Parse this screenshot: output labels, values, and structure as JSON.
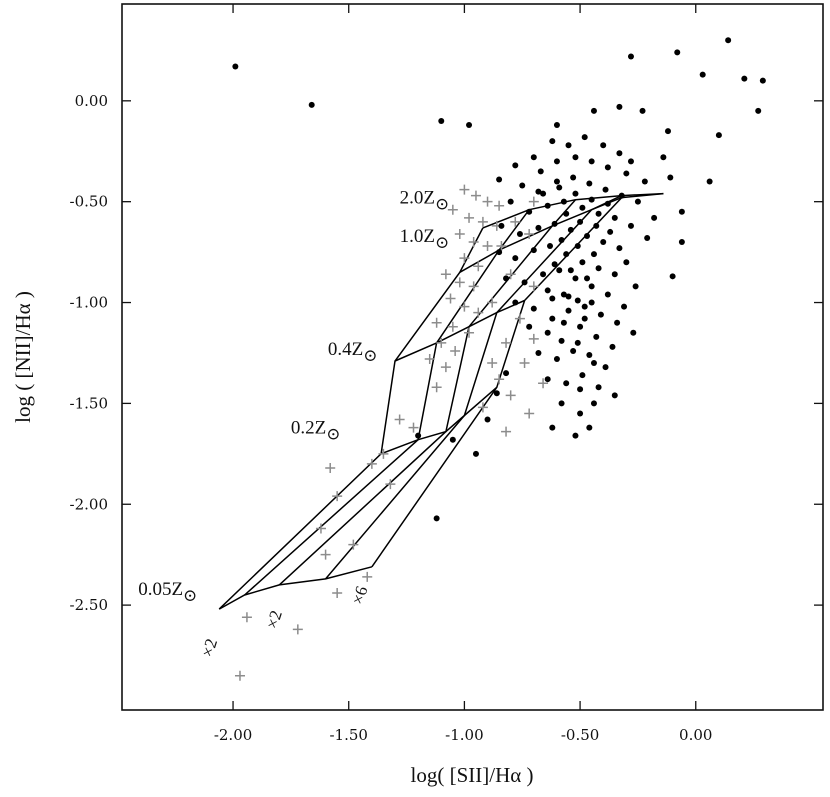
{
  "chart_data": {
    "type": "scatter",
    "title": "",
    "xlabel": "log( [SII]/Hα )",
    "ylabel": "log ( [NII]/Hα )",
    "xlim": [
      -2.48,
      0.55
    ],
    "ylim": [
      -3.02,
      0.48
    ],
    "xticks": [
      -2.0,
      -1.5,
      -1.0,
      -0.5,
      0.0
    ],
    "xtick_labels": [
      "-2.00",
      "-1.50",
      "-1.00",
      "-0.50",
      "0.00"
    ],
    "yticks": [
      0.0,
      -0.5,
      -1.0,
      -1.5,
      -2.0,
      -2.5
    ],
    "ytick_labels": [
      "0.00",
      "-0.50",
      "-1.00",
      "-1.50",
      "-2.00",
      "-2.50"
    ],
    "grid": false,
    "legend": "none",
    "series": [
      {
        "marker": "dot",
        "color": "#000000",
        "points": [
          [
            -1.99,
            0.17
          ],
          [
            -1.66,
            -0.02
          ],
          [
            -1.1,
            -0.1
          ],
          [
            -0.98,
            -0.12
          ],
          [
            -0.28,
            0.22
          ],
          [
            -0.08,
            0.24
          ],
          [
            0.03,
            0.13
          ],
          [
            0.14,
            0.3
          ],
          [
            0.21,
            0.11
          ],
          [
            0.29,
            0.1
          ],
          [
            0.27,
            -0.05
          ],
          [
            0.1,
            -0.17
          ],
          [
            -0.12,
            -0.15
          ],
          [
            -0.23,
            -0.05
          ],
          [
            -0.33,
            -0.03
          ],
          [
            -0.44,
            -0.05
          ],
          [
            -0.6,
            -0.12
          ],
          [
            -0.14,
            -0.28
          ],
          [
            -0.11,
            -0.38
          ],
          [
            -0.06,
            -0.55
          ],
          [
            -0.06,
            -0.7
          ],
          [
            0.06,
            -0.4
          ],
          [
            -0.1,
            -0.87
          ],
          [
            -0.85,
            -0.39
          ],
          [
            -0.78,
            -0.32
          ],
          [
            -0.62,
            -0.2
          ],
          [
            -0.55,
            -0.22
          ],
          [
            -0.48,
            -0.18
          ],
          [
            -0.4,
            -0.22
          ],
          [
            -0.33,
            -0.26
          ],
          [
            -0.28,
            -0.3
          ],
          [
            -0.7,
            -0.28
          ],
          [
            -0.67,
            -0.35
          ],
          [
            -0.6,
            -0.3
          ],
          [
            -0.52,
            -0.28
          ],
          [
            -0.45,
            -0.3
          ],
          [
            -0.38,
            -0.33
          ],
          [
            -0.3,
            -0.36
          ],
          [
            -0.22,
            -0.4
          ],
          [
            -0.75,
            -0.42
          ],
          [
            -0.68,
            -0.45
          ],
          [
            -0.6,
            -0.4
          ],
          [
            -0.53,
            -0.38
          ],
          [
            -0.46,
            -0.41
          ],
          [
            -0.39,
            -0.44
          ],
          [
            -0.32,
            -0.47
          ],
          [
            -0.25,
            -0.5
          ],
          [
            -0.8,
            -0.5
          ],
          [
            -0.72,
            -0.55
          ],
          [
            -0.64,
            -0.52
          ],
          [
            -0.57,
            -0.5
          ],
          [
            -0.49,
            -0.53
          ],
          [
            -0.42,
            -0.56
          ],
          [
            -0.35,
            -0.58
          ],
          [
            -0.28,
            -0.62
          ],
          [
            -0.84,
            -0.62
          ],
          [
            -0.76,
            -0.66
          ],
          [
            -0.68,
            -0.63
          ],
          [
            -0.61,
            -0.61
          ],
          [
            -0.54,
            -0.64
          ],
          [
            -0.47,
            -0.67
          ],
          [
            -0.4,
            -0.7
          ],
          [
            -0.33,
            -0.73
          ],
          [
            -0.85,
            -0.75
          ],
          [
            -0.78,
            -0.78
          ],
          [
            -0.7,
            -0.74
          ],
          [
            -0.63,
            -0.72
          ],
          [
            -0.56,
            -0.76
          ],
          [
            -0.49,
            -0.8
          ],
          [
            -0.42,
            -0.83
          ],
          [
            -0.35,
            -0.86
          ],
          [
            -0.82,
            -0.88
          ],
          [
            -0.74,
            -0.9
          ],
          [
            -0.66,
            -0.86
          ],
          [
            -0.59,
            -0.84
          ],
          [
            -0.52,
            -0.88
          ],
          [
            -0.45,
            -0.92
          ],
          [
            -0.38,
            -0.96
          ],
          [
            -0.78,
            -1.0
          ],
          [
            -0.7,
            -1.03
          ],
          [
            -0.62,
            -0.98
          ],
          [
            -0.55,
            -0.97
          ],
          [
            -0.48,
            -1.02
          ],
          [
            -0.41,
            -1.06
          ],
          [
            -0.34,
            -1.1
          ],
          [
            -0.72,
            -1.12
          ],
          [
            -0.64,
            -1.15
          ],
          [
            -0.57,
            -1.1
          ],
          [
            -0.5,
            -1.12
          ],
          [
            -0.43,
            -1.17
          ],
          [
            -0.36,
            -1.22
          ],
          [
            -0.68,
            -1.25
          ],
          [
            -0.6,
            -1.28
          ],
          [
            -0.53,
            -1.24
          ],
          [
            -0.46,
            -1.26
          ],
          [
            -0.39,
            -1.32
          ],
          [
            -0.64,
            -1.38
          ],
          [
            -0.56,
            -1.4
          ],
          [
            -0.49,
            -1.36
          ],
          [
            -0.42,
            -1.42
          ],
          [
            -0.35,
            -1.46
          ],
          [
            -0.58,
            -1.5
          ],
          [
            -0.5,
            -1.55
          ],
          [
            -0.44,
            -1.5
          ],
          [
            -0.62,
            -1.62
          ],
          [
            -0.52,
            -1.66
          ],
          [
            -0.46,
            -1.62
          ],
          [
            -0.82,
            -1.35
          ],
          [
            -0.86,
            -1.45
          ],
          [
            -0.9,
            -1.58
          ],
          [
            -0.95,
            -1.75
          ],
          [
            -1.05,
            -1.68
          ],
          [
            -1.2,
            -1.66
          ],
          [
            -1.12,
            -2.07
          ],
          [
            -0.66,
            -0.46
          ],
          [
            -0.59,
            -0.43
          ],
          [
            -0.52,
            -0.46
          ],
          [
            -0.45,
            -0.49
          ],
          [
            -0.38,
            -0.51
          ],
          [
            -0.56,
            -0.56
          ],
          [
            -0.5,
            -0.6
          ],
          [
            -0.43,
            -0.62
          ],
          [
            -0.37,
            -0.65
          ],
          [
            -0.58,
            -0.69
          ],
          [
            -0.51,
            -0.72
          ],
          [
            -0.44,
            -0.76
          ],
          [
            -0.61,
            -0.81
          ],
          [
            -0.54,
            -0.84
          ],
          [
            -0.47,
            -0.88
          ],
          [
            -0.64,
            -0.94
          ],
          [
            -0.57,
            -0.96
          ],
          [
            -0.51,
            -0.99
          ],
          [
            -0.45,
            -1.0
          ],
          [
            -0.62,
            -1.08
          ],
          [
            -0.55,
            -1.04
          ],
          [
            -0.48,
            -1.08
          ],
          [
            -0.58,
            -1.19
          ],
          [
            -0.51,
            -1.2
          ],
          [
            -0.44,
            -1.3
          ],
          [
            -0.5,
            -1.43
          ],
          [
            -0.3,
            -0.8
          ],
          [
            -0.26,
            -0.92
          ],
          [
            -0.31,
            -1.02
          ],
          [
            -0.27,
            -1.15
          ],
          [
            -0.21,
            -0.68
          ],
          [
            -0.18,
            -0.58
          ]
        ]
      },
      {
        "marker": "plus",
        "color": "#8c8c8c",
        "points": [
          [
            -1.0,
            -0.44
          ],
          [
            -0.95,
            -0.47
          ],
          [
            -0.9,
            -0.5
          ],
          [
            -0.85,
            -0.52
          ],
          [
            -1.05,
            -0.54
          ],
          [
            -0.98,
            -0.58
          ],
          [
            -0.92,
            -0.6
          ],
          [
            -0.86,
            -0.62
          ],
          [
            -1.02,
            -0.66
          ],
          [
            -0.96,
            -0.7
          ],
          [
            -0.9,
            -0.72
          ],
          [
            -1.0,
            -0.78
          ],
          [
            -0.94,
            -0.82
          ],
          [
            -1.08,
            -0.86
          ],
          [
            -1.02,
            -0.9
          ],
          [
            -0.96,
            -0.92
          ],
          [
            -1.06,
            -0.98
          ],
          [
            -1.0,
            -1.02
          ],
          [
            -0.94,
            -1.05
          ],
          [
            -1.12,
            -1.1
          ],
          [
            -1.05,
            -1.12
          ],
          [
            -0.98,
            -1.15
          ],
          [
            -1.1,
            -1.2
          ],
          [
            -1.04,
            -1.24
          ],
          [
            -1.15,
            -1.28
          ],
          [
            -1.08,
            -1.32
          ],
          [
            -0.88,
            -1.3
          ],
          [
            -0.85,
            -1.38
          ],
          [
            -1.12,
            -1.42
          ],
          [
            -0.8,
            -1.46
          ],
          [
            -1.28,
            -1.58
          ],
          [
            -1.22,
            -1.62
          ],
          [
            -1.35,
            -1.75
          ],
          [
            -1.4,
            -1.8
          ],
          [
            -1.32,
            -1.9
          ],
          [
            -1.58,
            -1.82
          ],
          [
            -1.55,
            -1.96
          ],
          [
            -1.62,
            -2.12
          ],
          [
            -1.48,
            -2.2
          ],
          [
            -1.6,
            -2.25
          ],
          [
            -1.55,
            -2.44
          ],
          [
            -1.42,
            -2.36
          ],
          [
            -1.72,
            -2.62
          ],
          [
            -1.97,
            -2.85
          ],
          [
            -1.94,
            -2.56
          ],
          [
            -0.84,
            -0.72
          ],
          [
            -0.78,
            -0.6
          ],
          [
            -0.72,
            -0.66
          ],
          [
            -0.8,
            -0.86
          ],
          [
            -0.7,
            -0.92
          ],
          [
            -0.76,
            -1.08
          ],
          [
            -0.7,
            -1.18
          ],
          [
            -0.74,
            -1.3
          ],
          [
            -0.66,
            -1.4
          ],
          [
            -0.72,
            -1.55
          ],
          [
            -0.7,
            -0.5
          ],
          [
            -0.88,
            -1.0
          ],
          [
            -0.82,
            -1.2
          ],
          [
            -0.92,
            -1.52
          ],
          [
            -0.82,
            -1.64
          ]
        ]
      }
    ],
    "model_grid": {
      "color": "#000000",
      "metallicity_tracks": [
        {
          "label": "0.05Z⊙",
          "points": [
            [
              -2.06,
              -2.52
            ],
            [
              -1.95,
              -2.45
            ],
            [
              -1.8,
              -2.4
            ],
            [
              -1.6,
              -2.37
            ],
            [
              -1.4,
              -2.31
            ]
          ]
        },
        {
          "label": "0.2Z⊙",
          "points": [
            [
              -1.36,
              -1.75
            ],
            [
              -1.2,
              -1.68
            ],
            [
              -1.08,
              -1.64
            ],
            [
              -1.0,
              -1.56
            ],
            [
              -0.86,
              -1.42
            ]
          ]
        },
        {
          "label": "0.4Z⊙",
          "points": [
            [
              -1.3,
              -1.29
            ],
            [
              -1.12,
              -1.2
            ],
            [
              -0.98,
              -1.12
            ],
            [
              -0.86,
              -1.05
            ],
            [
              -0.74,
              -0.99
            ]
          ]
        },
        {
          "label": "1.0Z⊙",
          "points": [
            [
              -1.02,
              -0.85
            ],
            [
              -0.85,
              -0.74
            ],
            [
              -0.62,
              -0.62
            ],
            [
              -0.45,
              -0.54
            ],
            [
              -0.32,
              -0.48
            ]
          ]
        },
        {
          "label": "2.0Z⊙",
          "points": [
            [
              -0.92,
              -0.63
            ],
            [
              -0.72,
              -0.54
            ],
            [
              -0.52,
              -0.49
            ],
            [
              -0.32,
              -0.47
            ],
            [
              -0.14,
              -0.46
            ]
          ]
        }
      ],
      "ionization_tracks": [
        {
          "label": "",
          "points": [
            [
              -2.06,
              -2.52
            ],
            [
              -1.36,
              -1.75
            ],
            [
              -1.3,
              -1.29
            ],
            [
              -1.02,
              -0.85
            ],
            [
              -0.92,
              -0.63
            ]
          ]
        },
        {
          "label": "×2",
          "points": [
            [
              -1.95,
              -2.45
            ],
            [
              -1.2,
              -1.68
            ],
            [
              -1.12,
              -1.2
            ],
            [
              -0.85,
              -0.74
            ],
            [
              -0.72,
              -0.54
            ]
          ]
        },
        {
          "label": "",
          "points": [
            [
              -1.8,
              -2.4
            ],
            [
              -1.08,
              -1.64
            ],
            [
              -0.98,
              -1.12
            ],
            [
              -0.62,
              -0.62
            ],
            [
              -0.52,
              -0.49
            ]
          ]
        },
        {
          "label": "×2",
          "points": [
            [
              -1.6,
              -2.37
            ],
            [
              -1.0,
              -1.56
            ],
            [
              -0.86,
              -1.05
            ],
            [
              -0.45,
              -0.54
            ],
            [
              -0.32,
              -0.47
            ]
          ]
        },
        {
          "label": "×6",
          "points": [
            [
              -1.4,
              -2.31
            ],
            [
              -0.86,
              -1.42
            ],
            [
              -0.74,
              -0.99
            ],
            [
              -0.32,
              -0.48
            ],
            [
              -0.14,
              -0.46
            ]
          ]
        }
      ]
    },
    "annotations": {
      "metallicity": [
        {
          "text": "0.05Z",
          "suffix": "⊙",
          "x": -2.41,
          "y": -2.45
        },
        {
          "text": "0.2Z",
          "suffix": "⊙",
          "x": -1.75,
          "y": -1.65
        },
        {
          "text": "0.4Z",
          "suffix": "⊙",
          "x": -1.59,
          "y": -1.26
        },
        {
          "text": "1.0Z",
          "suffix": "⊙",
          "x": -1.28,
          "y": -0.7
        },
        {
          "text": "2.0Z",
          "suffix": "⊙",
          "x": -1.28,
          "y": -0.51
        }
      ],
      "ionization": [
        {
          "text": "×2",
          "x": -2.08,
          "y": -2.72,
          "rotate": -72
        },
        {
          "text": "×2",
          "x": -1.8,
          "y": -2.58,
          "rotate": -72
        },
        {
          "text": "×6",
          "x": -1.43,
          "y": -2.46,
          "rotate": -72
        }
      ]
    }
  }
}
